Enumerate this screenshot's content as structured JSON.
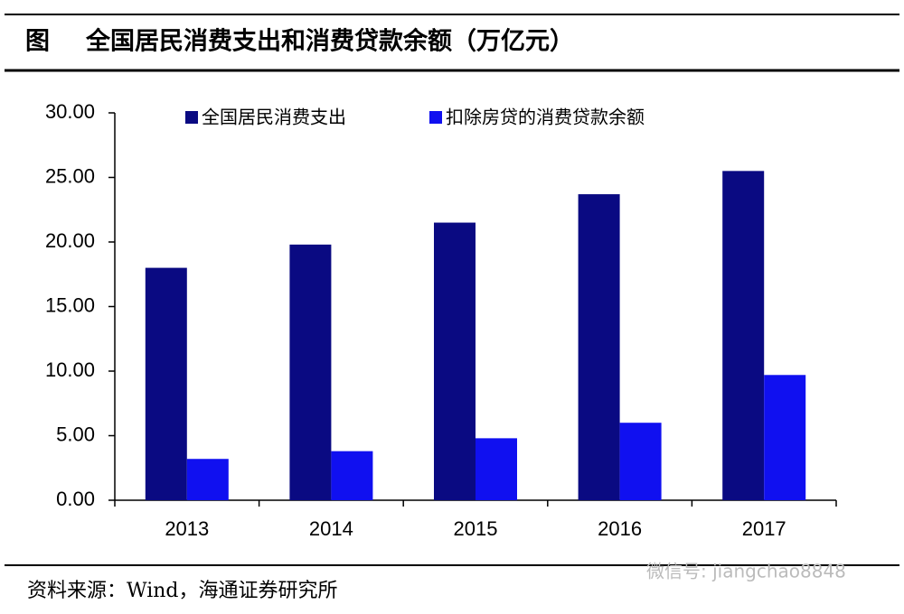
{
  "chart_data": {
    "type": "bar",
    "figure_label": "图",
    "title": "全国居民消费支出和消费贷款余额（万亿元）",
    "categories": [
      "2013",
      "2014",
      "2015",
      "2016",
      "2017"
    ],
    "series": [
      {
        "name": "全国居民消费支出",
        "color": "#0a0a82",
        "values": [
          18.0,
          19.8,
          21.5,
          23.7,
          25.5
        ]
      },
      {
        "name": "扣除房贷的消费贷款余额",
        "color": "#1010f0",
        "values": [
          3.2,
          3.8,
          4.8,
          6.0,
          9.7
        ]
      }
    ],
    "ylim": [
      0,
      30
    ],
    "yticks": [
      {
        "value": 0,
        "label": "0.00"
      },
      {
        "value": 5,
        "label": "5.00"
      },
      {
        "value": 10,
        "label": "10.00"
      },
      {
        "value": 15,
        "label": "15.00"
      },
      {
        "value": 20,
        "label": "20.00"
      },
      {
        "value": 25,
        "label": "25.00"
      },
      {
        "value": 30,
        "label": "30.00"
      }
    ],
    "legend": "top",
    "source": "资料来源：Wind，海通证券研究所",
    "watermark": "微信号: jiangchao8848"
  }
}
